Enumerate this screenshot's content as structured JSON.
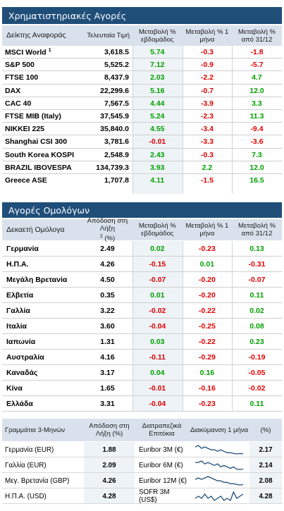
{
  "colors": {
    "title_bg": "#1f4e79",
    "header_bg": "#d9e2ec",
    "positive": "#00a000",
    "negative": "#e00000",
    "sparkline": "#1f4e79"
  },
  "equities": {
    "title": "Χρηματιστηριακές Αγορές",
    "headers": [
      "Δείκτης Αναφοράς",
      "Τελευταία Τιμή",
      "Μεταβολή % εβδομάδος",
      "Μεταβολή % 1 μήνα",
      "Μεταβολή % από 31/12"
    ],
    "rows": [
      {
        "name": "MSCI World",
        "sup": "1",
        "last": "3,618.5",
        "week": "5.74",
        "month": "-0.3",
        "ytd": "-1.8"
      },
      {
        "name": "S&P 500",
        "last": "5,525.2",
        "week": "7.12",
        "month": "-0.9",
        "ytd": "-5.7"
      },
      {
        "name": "FTSE 100",
        "last": "8,437.9",
        "week": "2.03",
        "month": "-2.2",
        "ytd": "4.7"
      },
      {
        "name": "DAX",
        "last": "22,299.6",
        "week": "5.16",
        "month": "-0.7",
        "ytd": "12.0"
      },
      {
        "name": "CAC 40",
        "last": "7,567.5",
        "week": "4.44",
        "month": "-3.9",
        "ytd": "3.3"
      },
      {
        "name": "FTSE MIB (Italy)",
        "last": "37,545.9",
        "week": "5.24",
        "month": "-2.3",
        "ytd": "11.3"
      },
      {
        "name": "NIKKEI 225",
        "last": "35,840.0",
        "week": "4.55",
        "month": "-3.4",
        "ytd": "-9.4"
      },
      {
        "name": "Shanghai CSI 300",
        "last": "3,781.6",
        "week": "-0.01",
        "month": "-3.3",
        "ytd": "-3.6"
      },
      {
        "name": "South Korea KOSPI",
        "last": "2,548.9",
        "week": "2.43",
        "month": "-0.3",
        "ytd": "7.3"
      },
      {
        "name": "BRAZIL IBOVESPA",
        "last": "134,739.3",
        "week": "3.93",
        "month": "2.2",
        "ytd": "12.0"
      },
      {
        "name": "Greece ASE",
        "last": "1,707.8",
        "week": "4.11",
        "month": "-1.5",
        "ytd": "16.5"
      }
    ]
  },
  "bonds": {
    "title": "Αγορές Ομολόγων",
    "headers": [
      "Δεκαετή Ομόλογα",
      "Απόδοση στη Λήξη",
      "2",
      "(%)",
      "Μεταβολή % εβδομάδος",
      "Μεταβολή % 1 μήνα",
      "Μεταβολή % από 31/12"
    ],
    "rows": [
      {
        "name": "Γερμανία",
        "yield": "2.49",
        "week": "0.02",
        "month": "-0.23",
        "ytd": "0.13"
      },
      {
        "name": "Η.Π.Α.",
        "yield": "4.26",
        "week": "-0.15",
        "month": "0.01",
        "ytd": "-0.31"
      },
      {
        "name": "Μεγάλη Βρετανία",
        "yield": "4.50",
        "week": "-0.07",
        "month": "-0.20",
        "ytd": "-0.07"
      },
      {
        "name": "Ελβετία",
        "yield": "0.35",
        "week": "0.01",
        "month": "-0.20",
        "ytd": "0.11"
      },
      {
        "name": "Γαλλία",
        "yield": "3.22",
        "week": "-0.02",
        "month": "-0.22",
        "ytd": "0.02"
      },
      {
        "name": "Ιταλία",
        "yield": "3.60",
        "week": "-0.04",
        "month": "-0.25",
        "ytd": "0.08"
      },
      {
        "name": "Ιαπωνία",
        "yield": "1.31",
        "week": "0.03",
        "month": "-0.22",
        "ytd": "0.23"
      },
      {
        "name": "Αυστραλία",
        "yield": "4.16",
        "week": "-0.11",
        "month": "-0.29",
        "ytd": "-0.19"
      },
      {
        "name": "Καναδάς",
        "yield": "3.17",
        "week": "0.04",
        "month": "0.16",
        "ytd": "-0.05"
      },
      {
        "name": "Κίνα",
        "yield": "1.65",
        "week": "-0.01",
        "month": "-0.16",
        "ytd": "-0.02"
      },
      {
        "name": "Ελλάδα",
        "yield": "3.31",
        "week": "-0.04",
        "month": "-0.23",
        "ytd": "0.11"
      }
    ]
  },
  "bills": {
    "headers": [
      "Γραμμάτια 3-Μηνών",
      "Απόδοση στη Λήξη (%)",
      "Διατραπεζικά Επιτόκια",
      "Διακύμανση 1 μήνα",
      "(%)"
    ],
    "rows": [
      {
        "name": "Γερμανία (EUR)",
        "yield": "1.88",
        "rate_name": "Euribor 3M (€)",
        "spark": [
          5,
          6,
          4,
          5,
          4,
          3,
          3,
          2,
          3,
          2,
          1,
          1,
          0.5,
          0.2,
          0.5,
          0.3
        ],
        "rate": "2.17"
      },
      {
        "name": "Γαλλία (EUR)",
        "yield": "2.09",
        "rate_name": "Euribor 6M (€)",
        "spark": [
          5,
          5,
          6,
          4,
          5,
          4,
          3,
          4,
          2,
          3,
          2,
          1,
          2,
          0.5,
          0.3,
          0.5
        ],
        "rate": "2.14"
      },
      {
        "name": "Μεγ. Βρετανία (GBP)",
        "yield": "4.26",
        "rate_name": "Euribor 12M (€)",
        "spark": [
          4,
          5,
          4,
          5,
          6,
          5,
          4,
          3,
          3,
          2,
          2,
          1,
          1,
          0.5,
          0.2,
          0.4
        ],
        "rate": "2.08"
      },
      {
        "name": "Η.Π.Α. (USD)",
        "yield": "4.28",
        "rate_name": "SOFR 3M (US$)",
        "spark": [
          3,
          4,
          3,
          5,
          3,
          4,
          2,
          3,
          4,
          2,
          3,
          2,
          6,
          3,
          4,
          5
        ],
        "rate": "4.28"
      }
    ]
  }
}
